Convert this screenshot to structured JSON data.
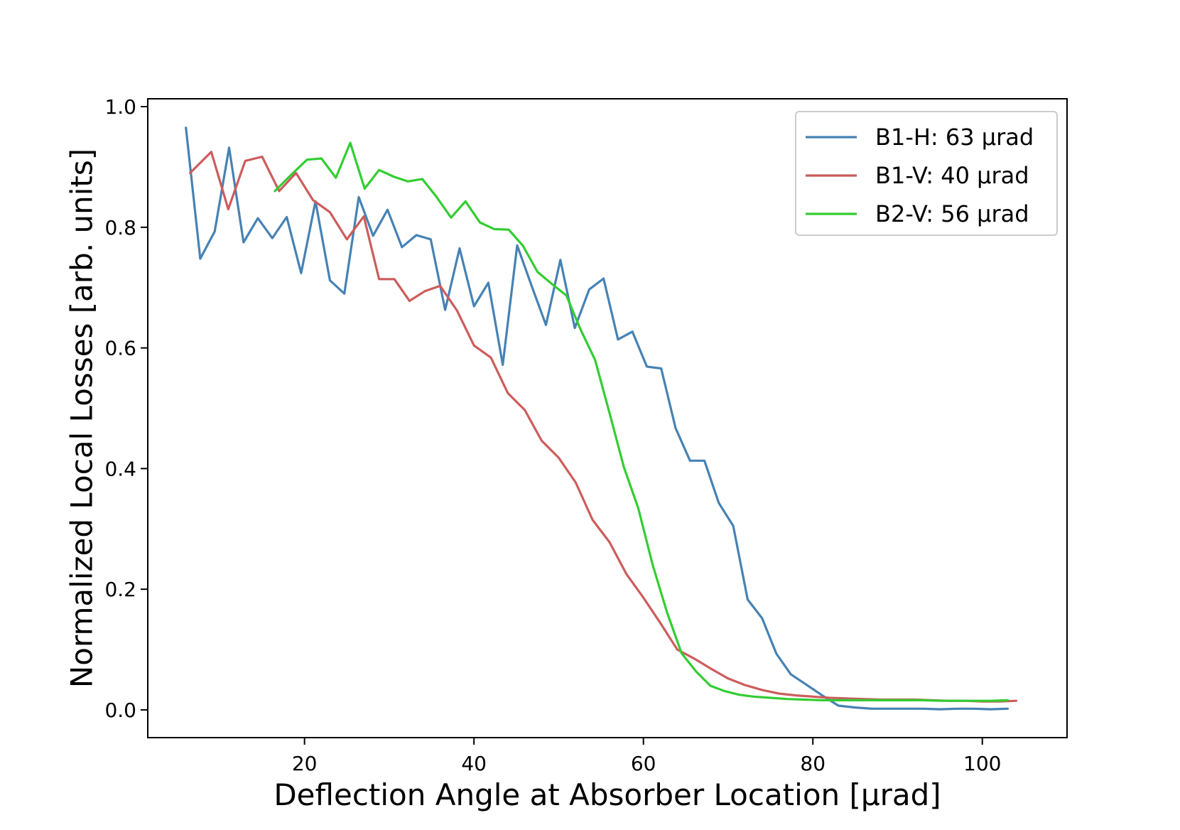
{
  "chart_data": {
    "type": "line",
    "title": "",
    "xlabel": "Deflection Angle at Absorber Location [μrad]",
    "ylabel": "Normalized Local Losses [arb. units]",
    "xlim": [
      1.5,
      110
    ],
    "ylim": [
      -0.046,
      1.013
    ],
    "xticks": [
      20,
      40,
      60,
      80,
      100
    ],
    "xtick_labels": [
      "20",
      "40",
      "60",
      "80",
      "100"
    ],
    "yticks": [
      0.0,
      0.2,
      0.4,
      0.6,
      0.8,
      1.0
    ],
    "ytick_labels": [
      "0.0",
      "0.2",
      "0.4",
      "0.6",
      "0.8",
      "1.0"
    ],
    "grid": false,
    "legend_position": "top-right",
    "series": [
      {
        "name": "B1-H: 63 μrad",
        "color": "#4682b4",
        "x": [
          6,
          7.7,
          9.4,
          11.1,
          12.8,
          14.5,
          16.2,
          17.9,
          19.6,
          21.3,
          23,
          24.7,
          26.4,
          28.1,
          29.8,
          31.5,
          33.2,
          34.9,
          36.6,
          38.3,
          40,
          41.7,
          43.4,
          45.1,
          46.8,
          48.5,
          50.2,
          51.9,
          53.6,
          55.3,
          57,
          58.7,
          60.4,
          62.1,
          63.8,
          65.5,
          67.2,
          68.9,
          70.6,
          72.3,
          74,
          75.7,
          77.4,
          79.1,
          81,
          83,
          85,
          87,
          89,
          91,
          93,
          95,
          97,
          99,
          101,
          103
        ],
        "values": [
          0.965,
          0.748,
          0.793,
          0.932,
          0.775,
          0.815,
          0.782,
          0.817,
          0.724,
          0.843,
          0.712,
          0.69,
          0.85,
          0.786,
          0.829,
          0.767,
          0.787,
          0.78,
          0.663,
          0.765,
          0.669,
          0.708,
          0.572,
          0.77,
          0.703,
          0.638,
          0.746,
          0.633,
          0.697,
          0.715,
          0.614,
          0.627,
          0.569,
          0.566,
          0.467,
          0.413,
          0.413,
          0.343,
          0.305,
          0.183,
          0.152,
          0.093,
          0.059,
          0.043,
          0.025,
          0.007,
          0.004,
          0.002,
          0.002,
          0.002,
          0.002,
          0.001,
          0.002,
          0.002,
          0.001,
          0.002
        ]
      },
      {
        "name": "B1-V: 40 μrad",
        "color": "#cd5c5c",
        "x": [
          6.5,
          9,
          11,
          13,
          15,
          17,
          19,
          21,
          23,
          25,
          27,
          28.8,
          30.6,
          32.4,
          34.2,
          36,
          38,
          40,
          42,
          44,
          46,
          48,
          50,
          52,
          54,
          56,
          58,
          60,
          62,
          64,
          66,
          68,
          70,
          72,
          74,
          76,
          78,
          80,
          82,
          84,
          86,
          88,
          90,
          92,
          94,
          96,
          98,
          100,
          102,
          104
        ],
        "values": [
          0.89,
          0.925,
          0.83,
          0.91,
          0.917,
          0.86,
          0.89,
          0.845,
          0.825,
          0.78,
          0.818,
          0.714,
          0.714,
          0.678,
          0.694,
          0.703,
          0.662,
          0.604,
          0.584,
          0.525,
          0.497,
          0.446,
          0.418,
          0.377,
          0.315,
          0.278,
          0.225,
          0.186,
          0.144,
          0.1,
          0.085,
          0.068,
          0.052,
          0.041,
          0.033,
          0.027,
          0.024,
          0.022,
          0.02,
          0.019,
          0.018,
          0.017,
          0.017,
          0.017,
          0.016,
          0.015,
          0.015,
          0.014,
          0.014,
          0.015
        ]
      },
      {
        "name": "B2-V: 56 μrad",
        "color": "#32cd32",
        "x": [
          16.5,
          18.5,
          20.3,
          22,
          23.7,
          25.4,
          27.1,
          28.8,
          30.5,
          32.2,
          33.9,
          35.6,
          37.3,
          39,
          40.7,
          42.4,
          44.1,
          45.8,
          47.5,
          49.2,
          50.9,
          52.6,
          54.3,
          56,
          57.7,
          59.4,
          61.1,
          62.8,
          64.5,
          66.2,
          67.9,
          69.6,
          71.3,
          73,
          75,
          77,
          79,
          81,
          83,
          85,
          87,
          89,
          91,
          93,
          95,
          97,
          99,
          101,
          103
        ],
        "values": [
          0.86,
          0.888,
          0.912,
          0.914,
          0.882,
          0.94,
          0.864,
          0.895,
          0.884,
          0.876,
          0.88,
          0.85,
          0.816,
          0.843,
          0.808,
          0.797,
          0.796,
          0.769,
          0.726,
          0.706,
          0.687,
          0.63,
          0.58,
          0.492,
          0.402,
          0.334,
          0.24,
          0.161,
          0.094,
          0.064,
          0.04,
          0.031,
          0.025,
          0.022,
          0.02,
          0.018,
          0.017,
          0.016,
          0.016,
          0.016,
          0.016,
          0.016,
          0.016,
          0.016,
          0.015,
          0.015,
          0.015,
          0.015,
          0.016
        ]
      }
    ]
  }
}
